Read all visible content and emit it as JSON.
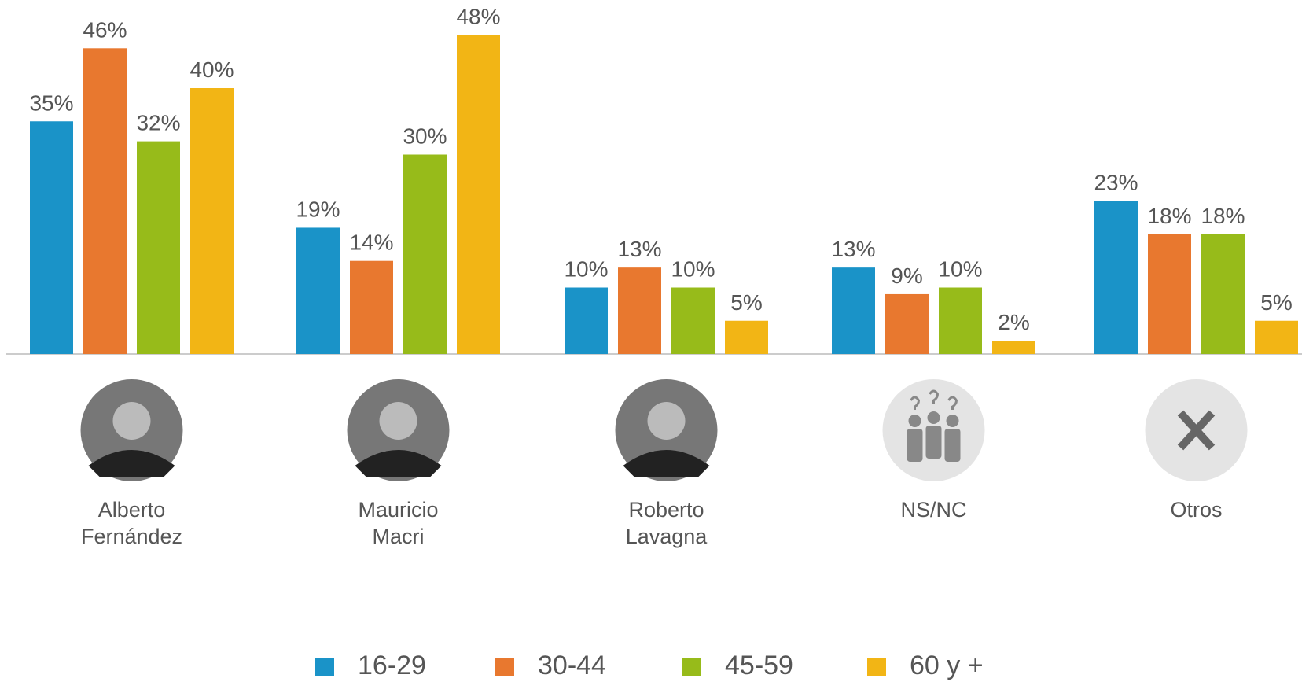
{
  "chart_data": {
    "type": "bar",
    "categories": [
      "Alberto Fernández",
      "Mauricio Macri",
      "Roberto Lavagna",
      "NS/NC",
      "Otros"
    ],
    "series": [
      {
        "name": "16-29",
        "color": "#1a93c8",
        "values": [
          35,
          19,
          10,
          13,
          23
        ],
        "value_labels": [
          "35%",
          "19%",
          "10%",
          "13%",
          "23%"
        ]
      },
      {
        "name": "30-44",
        "color": "#e8782f",
        "values": [
          46,
          14,
          13,
          9,
          18
        ],
        "value_labels": [
          "46%",
          "14%",
          "13%",
          "9%",
          "18%"
        ]
      },
      {
        "name": "45-59",
        "color": "#97bb1a",
        "values": [
          32,
          30,
          10,
          10,
          18
        ],
        "value_labels": [
          "32%",
          "30%",
          "10%",
          "10%",
          "18%"
        ]
      },
      {
        "name": "60 y +",
        "color": "#f2b515",
        "values": [
          40,
          48,
          5,
          2,
          5
        ],
        "value_labels": [
          "40%",
          "48%",
          "5%",
          "2%",
          "5%"
        ]
      }
    ],
    "legend": "bottom"
  }
}
